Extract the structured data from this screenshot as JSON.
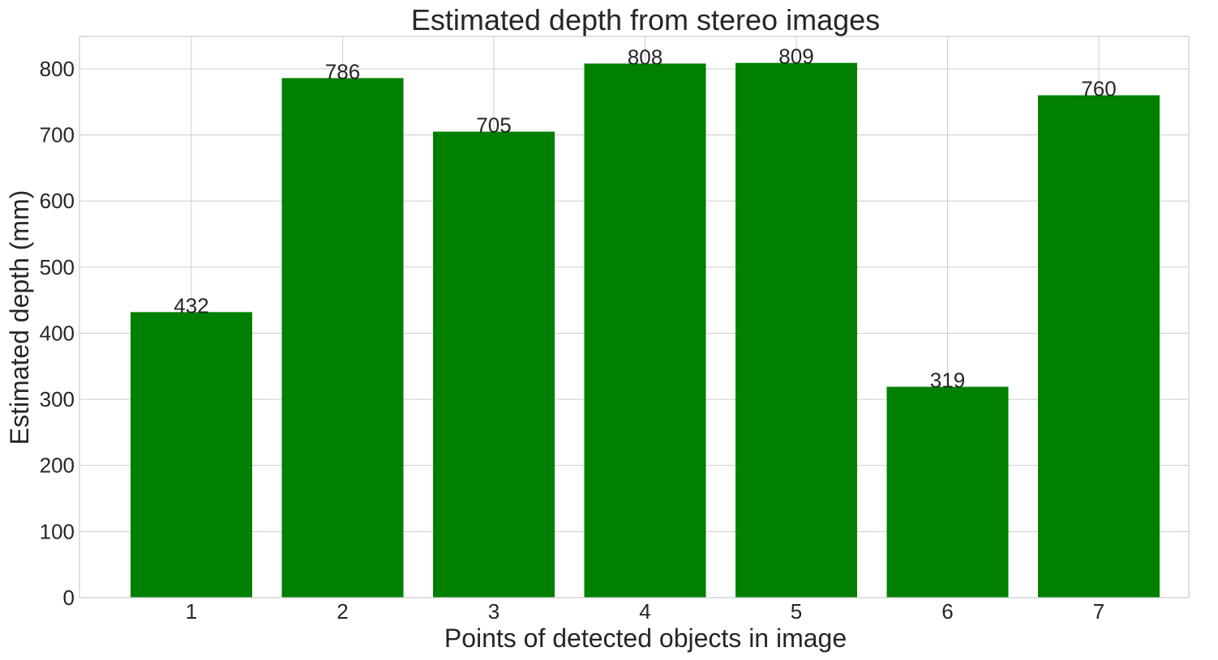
{
  "chart_data": {
    "type": "bar",
    "title": "Estimated depth from stereo images",
    "xlabel": "Points of detected objects in image",
    "ylabel": "Estimated depth (mm)",
    "categories": [
      "1",
      "2",
      "3",
      "4",
      "5",
      "6",
      "7"
    ],
    "values": [
      432,
      786,
      705,
      808,
      809,
      319,
      760
    ],
    "data_labels": [
      "432",
      "786",
      "705",
      "808",
      "809",
      "319",
      "760"
    ],
    "yticks": [
      0,
      100,
      200,
      300,
      400,
      500,
      600,
      700,
      800
    ],
    "ylim": [
      0,
      849
    ],
    "grid": true,
    "bar_color": "#008000"
  }
}
